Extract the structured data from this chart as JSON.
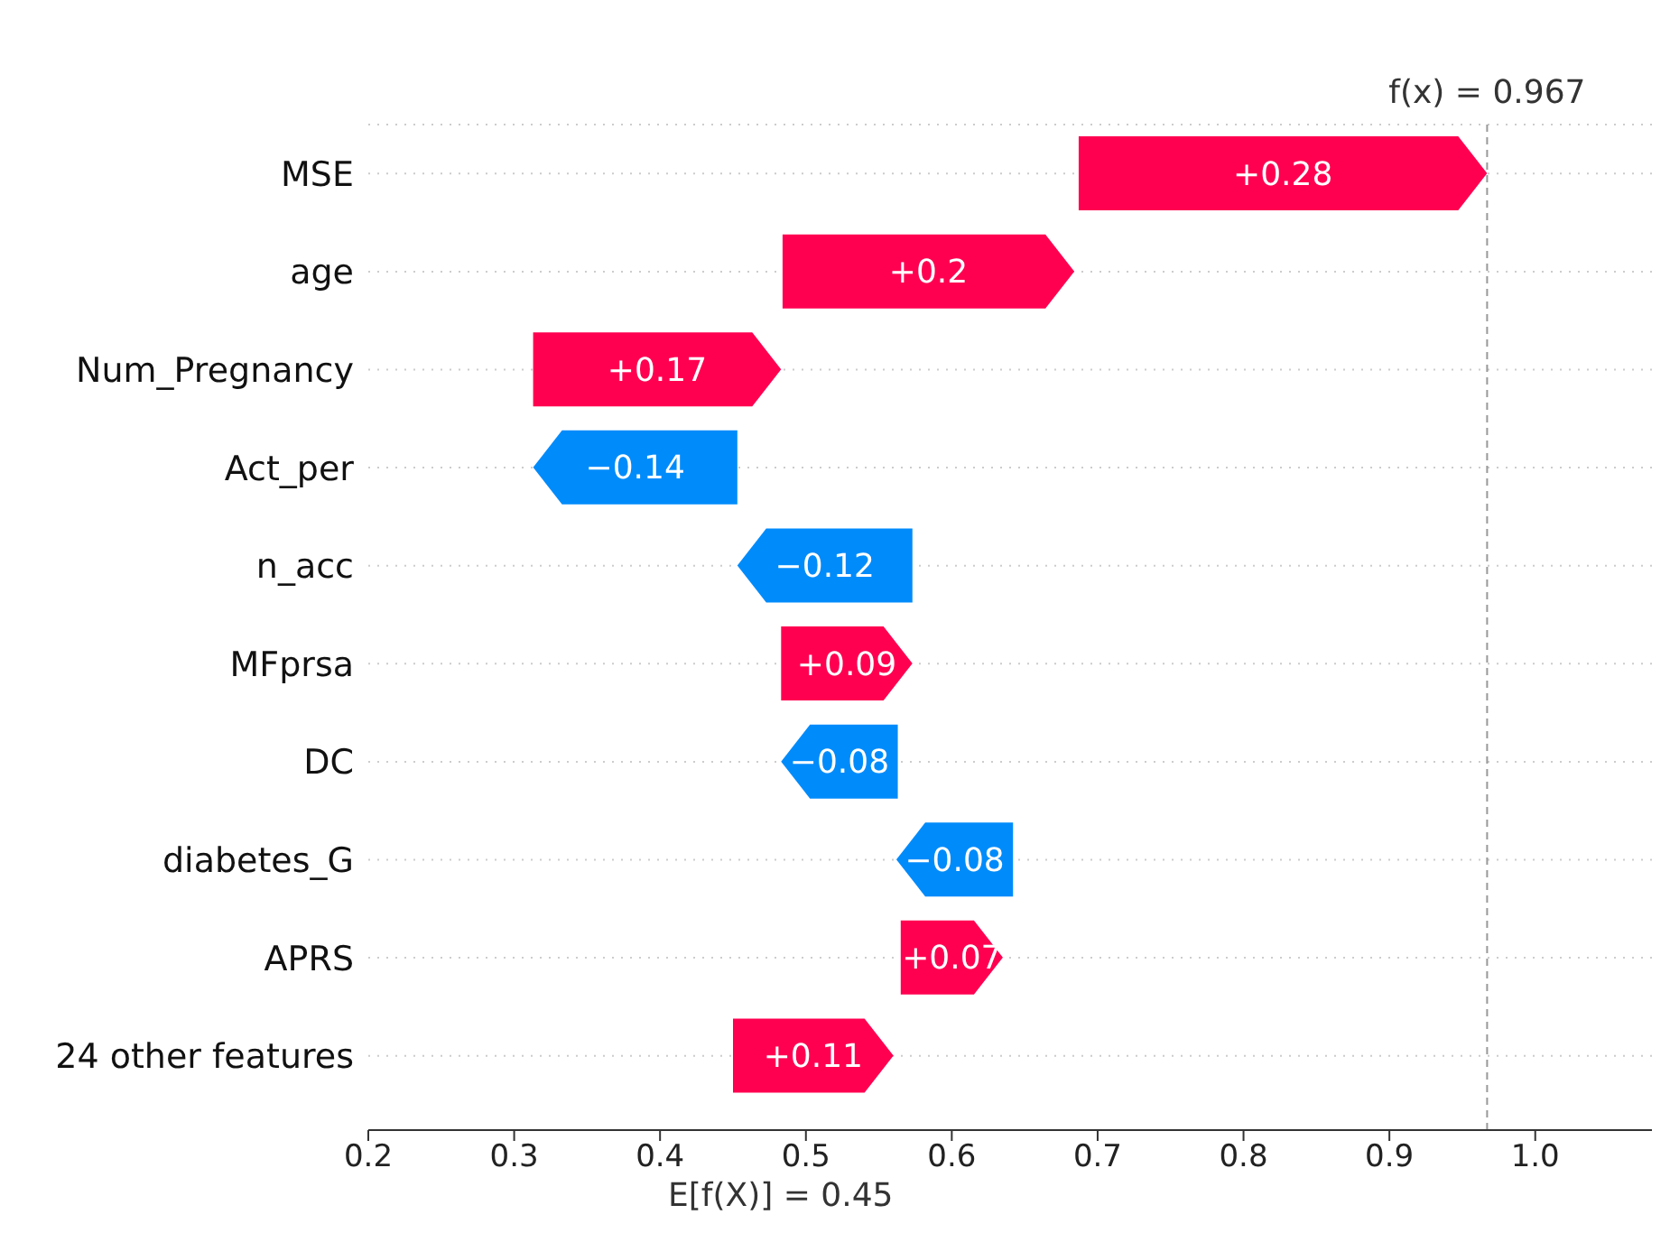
{
  "chart_data": {
    "type": "bar",
    "orientation": "horizontal",
    "categories": [
      "MSE",
      "age",
      "Num_Pregnancy",
      "Act_per",
      "n_acc",
      "MFprsa",
      "DC",
      "diabetes_G",
      "APRS",
      "24 other features"
    ],
    "values": [
      0.28,
      0.2,
      0.17,
      -0.14,
      -0.12,
      0.09,
      -0.08,
      -0.08,
      0.07,
      0.11
    ],
    "base": [
      0.687,
      0.484,
      0.313,
      0.453,
      0.573,
      0.483,
      0.563,
      0.642,
      0.565,
      0.45
    ],
    "colors": [
      "#ff0051",
      "#ff0051",
      "#ff0051",
      "#008bfb",
      "#008bfb",
      "#ff0051",
      "#008bfb",
      "#008bfb",
      "#ff0051",
      "#ff0051"
    ],
    "value_labels": [
      "+0.28",
      "+0.2",
      "+0.17",
      "−0.14",
      "−0.12",
      "+0.09",
      "−0.08",
      "−0.08",
      "+0.07",
      "+0.11"
    ],
    "xlim": [
      0.2,
      1.08
    ],
    "xticks": [
      0.2,
      0.3,
      0.4,
      0.5,
      0.6,
      0.7,
      0.8,
      0.9,
      {
        "value": 1,
        "label": "1.0"
      }
    ],
    "grid": "y",
    "ref_lines": [
      {
        "axis": "x",
        "value": 0.967,
        "label": "f(x) = 0.967",
        "color": "#999999",
        "line_style": "dashed"
      }
    ],
    "annotations": [
      "E[f(X)] = 0.45"
    ]
  }
}
